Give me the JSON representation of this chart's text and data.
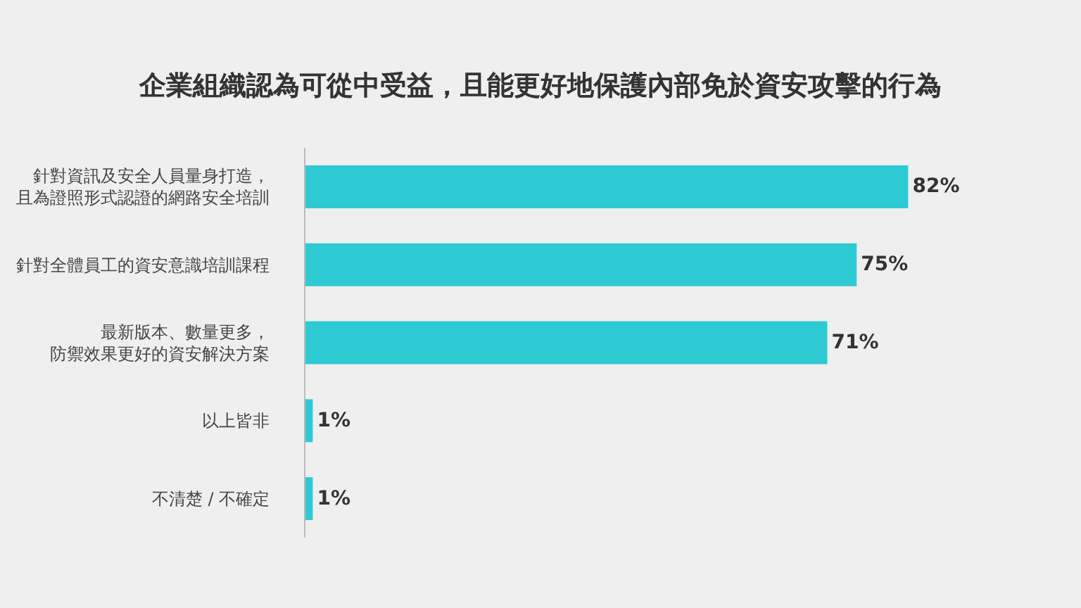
{
  "chart_data": {
    "type": "bar",
    "orientation": "horizontal",
    "title": "企業組織認為可從中受益，且能更好地保護內部免於資安攻擊的行為",
    "categories": [
      "針對資訊及安全人員量身打造，且為證照形式認證的網路安全培訓",
      "針對全體員工的資安意識培訓課程",
      "最新版本、數量更多，防禦效果更好的資安解決方案",
      "以上皆非",
      "不清楚 / 不確定"
    ],
    "values": [
      82,
      75,
      71,
      1,
      1
    ],
    "value_labels": [
      "82%",
      "75%",
      "71%",
      "1%",
      "1%"
    ],
    "color": "#2ecad3",
    "grid": false,
    "legend": false
  }
}
